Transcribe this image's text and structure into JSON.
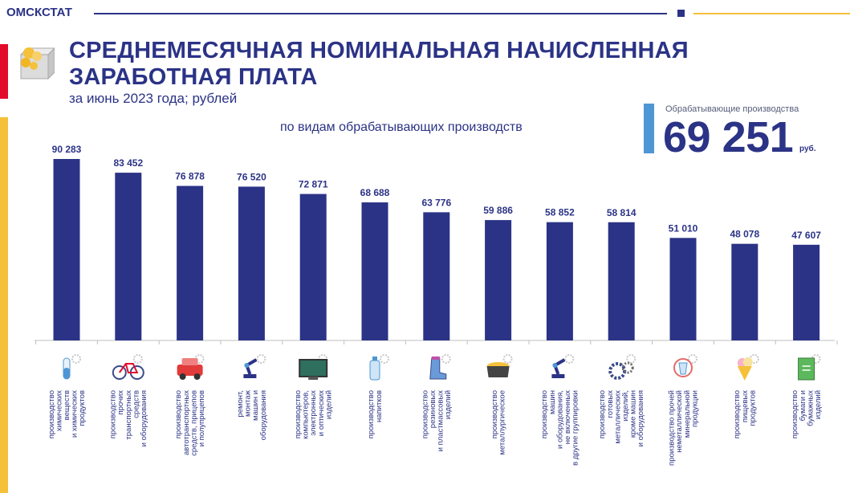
{
  "header": {
    "brand": "ОМСКСТАТ",
    "title_line1": "СРЕДНЕМЕСЯЧНАЯ НОМИНАЛЬНАЯ НАЧИСЛЕННАЯ",
    "title_line2": "ЗАРАБОТНАЯ ПЛАТА",
    "subtitle": "за июнь 2023 года; рублей"
  },
  "kpi": {
    "label": "Обрабатывающие производства",
    "value": "69 251",
    "unit": "руб."
  },
  "colors": {
    "primary": "#2b3386",
    "bar": "#2b3386",
    "accent_red": "#e30b2c",
    "accent_yellow": "#f5c13a",
    "kpi_bar": "#4e97d4"
  },
  "chart_data": {
    "type": "bar",
    "title": "по видам обрабатывающих производств",
    "value_labels": [
      "90 283",
      "83 452",
      "76 878",
      "76 520",
      "72 871",
      "68 688",
      "63 776",
      "59 886",
      "58 852",
      "58 814",
      "51 010",
      "48 078",
      "47 607"
    ],
    "values": [
      90283,
      83452,
      76878,
      76520,
      72871,
      68688,
      63776,
      59886,
      58852,
      58814,
      51010,
      48078,
      47607
    ],
    "ylim": [
      0,
      90283
    ],
    "categories": [
      [
        "производство",
        "химических",
        "веществ",
        "и химических",
        "продуктов"
      ],
      [
        "производство",
        "прочих",
        "транспортных",
        "средств",
        "и оборудования"
      ],
      [
        "производство",
        "автотранспортных",
        "средств, прицепов",
        "и полуприцепов"
      ],
      [
        "ремонт,",
        "монтаж",
        "машин и",
        "оборудования"
      ],
      [
        "производство",
        "компьютеров,",
        "электронных",
        "и оптических",
        "изделий"
      ],
      [
        "производство",
        "напитков"
      ],
      [
        "производство",
        "резиновых",
        "и пластмассовых",
        "изделий"
      ],
      [
        "производство",
        "металлургическое"
      ],
      [
        "производство",
        "машин",
        "и оборудования,",
        "не включенных",
        "в другие группировки"
      ],
      [
        "производство",
        "готовых",
        "металлических",
        "изделий,",
        "кроме машин",
        "и оборудования"
      ],
      [
        "производство прочей",
        "неметаллической",
        "минеральной",
        "продукции"
      ],
      [
        "производство",
        "пищевых",
        "продуктов"
      ],
      [
        "производство",
        "бумаги и",
        "бумажных",
        "изделий"
      ]
    ],
    "icons": [
      "test-tube-icon",
      "bicycle-icon",
      "car-icon",
      "robot-arm-icon",
      "monitor-icon",
      "bottle-icon",
      "boot-icon",
      "metal-ladle-icon",
      "robot-arm-icon",
      "gears-icon",
      "glass-icon",
      "ice-cream-icon",
      "book-icon"
    ],
    "grid": false,
    "legend": "none"
  }
}
